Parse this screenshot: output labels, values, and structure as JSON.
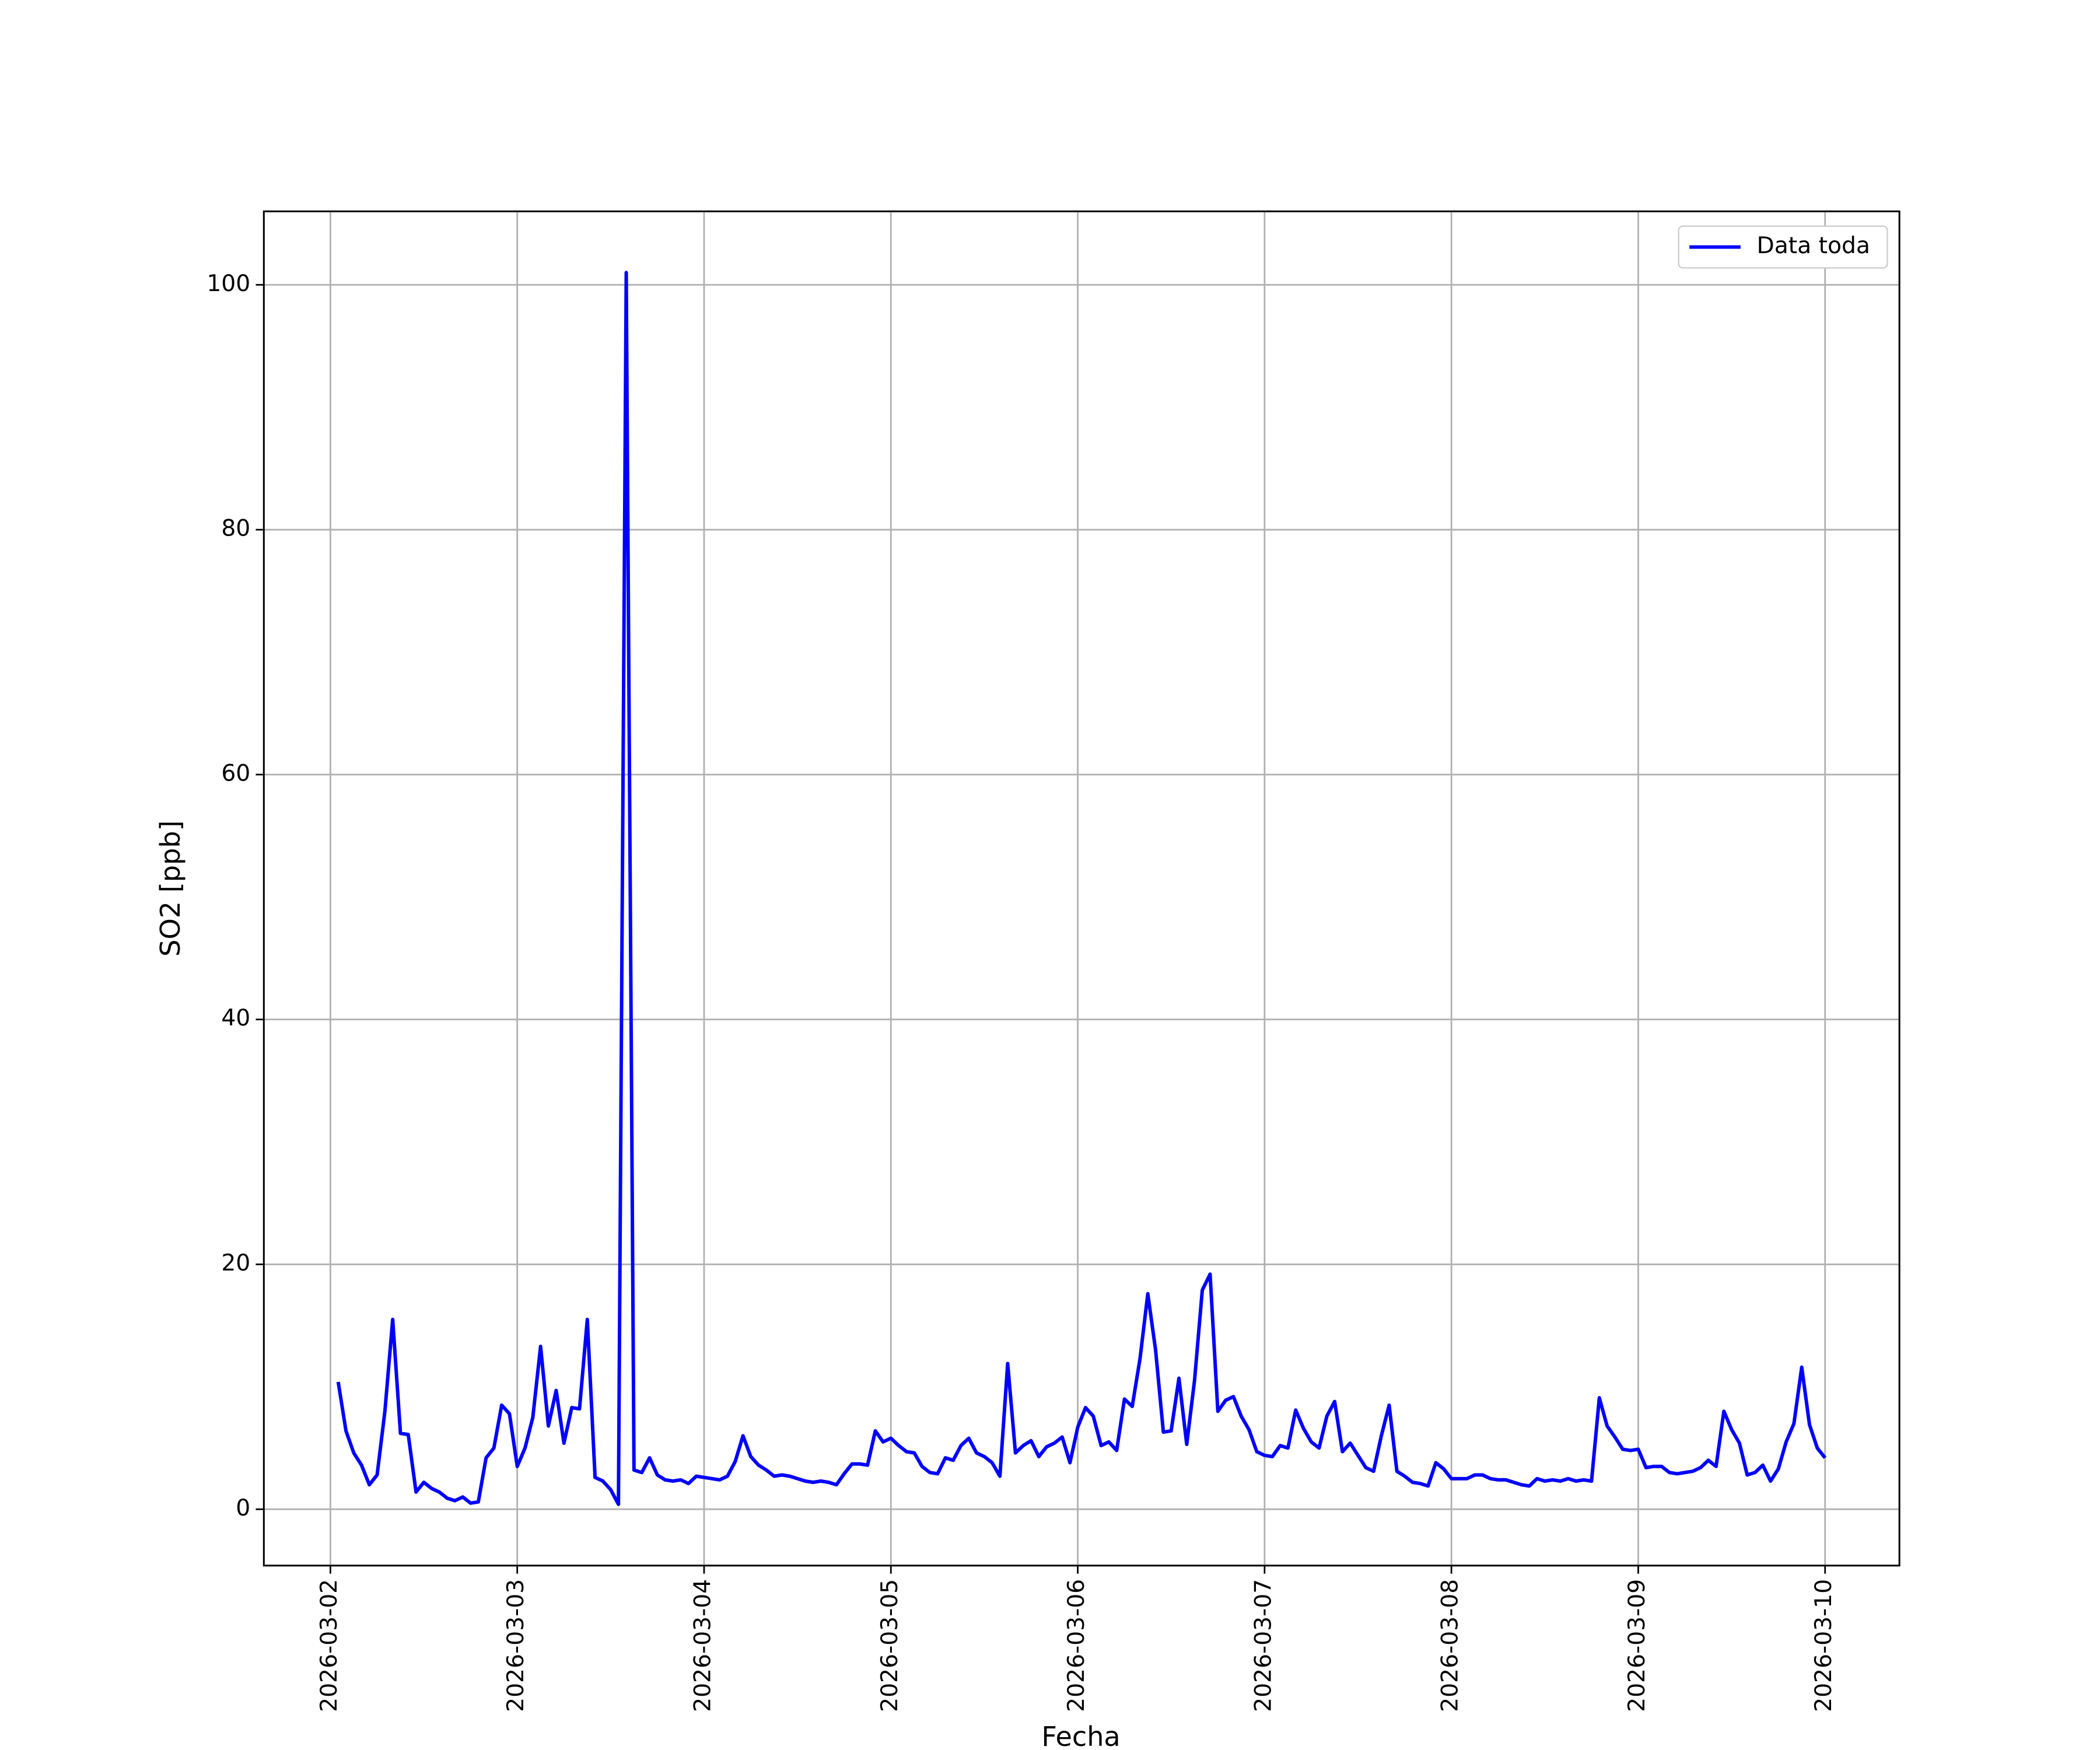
{
  "chart_data": {
    "type": "line",
    "x_label": "Fecha",
    "y_label": "SO2 [ppb]",
    "x": [
      "2026-03-02 01:00",
      "2026-03-02 02:00",
      "2026-03-02 03:00",
      "2026-03-02 04:00",
      "2026-03-02 05:00",
      "2026-03-02 06:00",
      "2026-03-02 07:00",
      "2026-03-02 08:00",
      "2026-03-02 09:00",
      "2026-03-02 10:00",
      "2026-03-02 11:00",
      "2026-03-02 12:00",
      "2026-03-02 13:00",
      "2026-03-02 14:00",
      "2026-03-02 15:00",
      "2026-03-02 16:00",
      "2026-03-02 17:00",
      "2026-03-02 18:00",
      "2026-03-02 19:00",
      "2026-03-02 20:00",
      "2026-03-02 21:00",
      "2026-03-02 22:00",
      "2026-03-02 23:00",
      "2026-03-03 00:00",
      "2026-03-03 01:00",
      "2026-03-03 02:00",
      "2026-03-03 03:00",
      "2026-03-03 04:00",
      "2026-03-03 05:00",
      "2026-03-03 06:00",
      "2026-03-03 07:00",
      "2026-03-03 08:00",
      "2026-03-03 09:00",
      "2026-03-03 10:00",
      "2026-03-03 11:00",
      "2026-03-03 12:00",
      "2026-03-03 13:00",
      "2026-03-03 14:00",
      "2026-03-03 15:00",
      "2026-03-03 16:00",
      "2026-03-03 17:00",
      "2026-03-03 18:00",
      "2026-03-03 19:00",
      "2026-03-03 20:00",
      "2026-03-03 21:00",
      "2026-03-03 22:00",
      "2026-03-03 23:00",
      "2026-03-04 00:00",
      "2026-03-04 01:00",
      "2026-03-04 02:00",
      "2026-03-04 03:00",
      "2026-03-04 04:00",
      "2026-03-04 05:00",
      "2026-03-04 06:00",
      "2026-03-04 07:00",
      "2026-03-04 08:00",
      "2026-03-04 09:00",
      "2026-03-04 10:00",
      "2026-03-04 11:00",
      "2026-03-04 12:00",
      "2026-03-04 13:00",
      "2026-03-04 14:00",
      "2026-03-04 15:00",
      "2026-03-04 16:00",
      "2026-03-04 17:00",
      "2026-03-04 18:00",
      "2026-03-04 19:00",
      "2026-03-04 20:00",
      "2026-03-04 21:00",
      "2026-03-04 22:00",
      "2026-03-04 23:00",
      "2026-03-05 00:00",
      "2026-03-05 01:00",
      "2026-03-05 02:00",
      "2026-03-05 03:00",
      "2026-03-05 04:00",
      "2026-03-05 05:00",
      "2026-03-05 06:00",
      "2026-03-05 07:00",
      "2026-03-05 08:00",
      "2026-03-05 09:00",
      "2026-03-05 10:00",
      "2026-03-05 11:00",
      "2026-03-05 12:00",
      "2026-03-05 13:00",
      "2026-03-05 14:00",
      "2026-03-05 15:00",
      "2026-03-05 16:00",
      "2026-03-05 17:00",
      "2026-03-05 18:00",
      "2026-03-05 19:00",
      "2026-03-05 20:00",
      "2026-03-05 21:00",
      "2026-03-05 22:00",
      "2026-03-05 23:00",
      "2026-03-06 00:00",
      "2026-03-06 01:00",
      "2026-03-06 02:00",
      "2026-03-06 03:00",
      "2026-03-06 04:00",
      "2026-03-06 05:00",
      "2026-03-06 06:00",
      "2026-03-06 07:00",
      "2026-03-06 08:00",
      "2026-03-06 09:00",
      "2026-03-06 10:00",
      "2026-03-06 11:00",
      "2026-03-06 12:00",
      "2026-03-06 13:00",
      "2026-03-06 14:00",
      "2026-03-06 15:00",
      "2026-03-06 16:00",
      "2026-03-06 17:00",
      "2026-03-06 18:00",
      "2026-03-06 19:00",
      "2026-03-06 20:00",
      "2026-03-06 21:00",
      "2026-03-06 22:00",
      "2026-03-06 23:00",
      "2026-03-07 00:00",
      "2026-03-07 01:00",
      "2026-03-07 02:00",
      "2026-03-07 03:00",
      "2026-03-07 04:00",
      "2026-03-07 05:00",
      "2026-03-07 06:00",
      "2026-03-07 07:00",
      "2026-03-07 08:00",
      "2026-03-07 09:00",
      "2026-03-07 10:00",
      "2026-03-07 11:00",
      "2026-03-07 12:00",
      "2026-03-07 13:00",
      "2026-03-07 14:00",
      "2026-03-07 15:00",
      "2026-03-07 16:00",
      "2026-03-07 17:00",
      "2026-03-07 18:00",
      "2026-03-07 19:00",
      "2026-03-07 20:00",
      "2026-03-07 21:00",
      "2026-03-07 22:00",
      "2026-03-07 23:00",
      "2026-03-08 00:00",
      "2026-03-08 01:00",
      "2026-03-08 02:00",
      "2026-03-08 03:00",
      "2026-03-08 04:00",
      "2026-03-08 05:00",
      "2026-03-08 06:00",
      "2026-03-08 07:00",
      "2026-03-08 08:00",
      "2026-03-08 09:00",
      "2026-03-08 10:00",
      "2026-03-08 11:00",
      "2026-03-08 12:00",
      "2026-03-08 13:00",
      "2026-03-08 14:00",
      "2026-03-08 15:00",
      "2026-03-08 16:00",
      "2026-03-08 17:00",
      "2026-03-08 18:00",
      "2026-03-08 19:00",
      "2026-03-08 20:00",
      "2026-03-08 21:00",
      "2026-03-08 22:00",
      "2026-03-08 23:00",
      "2026-03-09 00:00",
      "2026-03-09 01:00",
      "2026-03-09 02:00",
      "2026-03-09 03:00",
      "2026-03-09 04:00",
      "2026-03-09 05:00",
      "2026-03-09 06:00",
      "2026-03-09 07:00",
      "2026-03-09 08:00",
      "2026-03-09 09:00",
      "2026-03-09 10:00",
      "2026-03-09 11:00",
      "2026-03-09 12:00",
      "2026-03-09 13:00",
      "2026-03-09 14:00",
      "2026-03-09 15:00",
      "2026-03-09 16:00",
      "2026-03-09 17:00",
      "2026-03-09 18:00",
      "2026-03-09 19:00",
      "2026-03-09 20:00",
      "2026-03-09 21:00",
      "2026-03-09 22:00",
      "2026-03-09 23:00",
      "2026-03-10 00:00"
    ],
    "series": [
      {
        "name": "Data toda",
        "color": "#0000ff",
        "values": [
          10.4,
          6.4,
          4.6,
          3.6,
          2.0,
          2.8,
          8.0,
          15.5,
          6.2,
          6.1,
          1.4,
          2.2,
          1.7,
          1.4,
          0.9,
          0.7,
          1.0,
          0.5,
          0.6,
          4.2,
          5.0,
          8.5,
          7.8,
          3.5,
          5.0,
          7.5,
          13.3,
          6.8,
          9.7,
          5.4,
          8.3,
          8.2,
          15.5,
          2.6,
          2.3,
          1.6,
          0.4,
          101,
          3.2,
          3.0,
          4.2,
          2.8,
          2.4,
          2.3,
          2.4,
          2.1,
          2.7,
          2.6,
          2.5,
          2.4,
          2.7,
          3.9,
          6.0,
          4.3,
          3.6,
          3.2,
          2.7,
          2.8,
          2.7,
          2.5,
          2.3,
          2.2,
          2.3,
          2.2,
          2.0,
          2.9,
          3.7,
          3.7,
          3.6,
          6.4,
          5.5,
          5.8,
          5.2,
          4.7,
          4.6,
          3.5,
          3.0,
          2.9,
          4.2,
          4.0,
          5.2,
          5.8,
          4.6,
          4.3,
          3.8,
          2.7,
          11.9,
          4.6,
          5.2,
          5.6,
          4.3,
          5.1,
          5.4,
          5.9,
          3.8,
          6.7,
          8.3,
          7.6,
          5.2,
          5.5,
          4.8,
          9.0,
          8.4,
          12.3,
          17.6,
          13.0,
          6.3,
          6.4,
          10.7,
          5.3,
          10.5,
          17.9,
          19.2,
          8.0,
          8.9,
          9.2,
          7.6,
          6.5,
          4.7,
          4.4,
          4.3,
          5.2,
          5.0,
          8.1,
          6.6,
          5.5,
          5.0,
          7.6,
          8.8,
          4.7,
          5.4,
          4.4,
          3.4,
          3.1,
          6.0,
          8.5,
          3.1,
          2.7,
          2.2,
          2.1,
          1.9,
          3.8,
          3.3,
          2.5,
          2.5,
          2.5,
          2.8,
          2.8,
          2.5,
          2.4,
          2.4,
          2.2,
          2.0,
          1.9,
          2.5,
          2.3,
          2.4,
          2.3,
          2.5,
          2.3,
          2.4,
          2.3,
          9.1,
          6.8,
          5.9,
          4.9,
          4.8,
          4.9,
          3.4,
          3.5,
          3.5,
          3.0,
          2.9,
          3.0,
          3.1,
          3.4,
          4.0,
          3.5,
          8.0,
          6.5,
          5.4,
          2.8,
          3.0,
          3.6,
          2.3,
          3.3,
          5.5,
          7.0,
          11.6,
          6.9,
          5.0,
          4.2
        ]
      }
    ],
    "xlim": [
      "2026-03-01 15:27",
      "2026-03-10 09:33"
    ],
    "xticks": [
      "2026-03-02",
      "2026-03-03",
      "2026-03-04",
      "2026-03-05",
      "2026-03-06",
      "2026-03-07",
      "2026-03-08",
      "2026-03-09",
      "2026-03-10"
    ],
    "ylim": [
      -4.6,
      106.0
    ],
    "yticks": [
      0,
      20,
      40,
      60,
      80,
      100
    ],
    "grid": true,
    "legend": "upper right"
  }
}
